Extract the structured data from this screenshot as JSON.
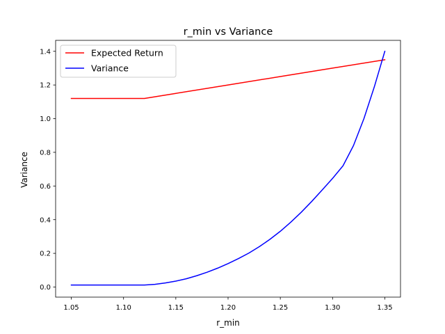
{
  "chart_data": {
    "type": "line",
    "title": "r_min vs Variance",
    "xlabel": "r_min",
    "ylabel": "Variance",
    "xlim": [
      1.035,
      1.365
    ],
    "ylim": [
      -0.06,
      1.465
    ],
    "xticks": [
      1.05,
      1.1,
      1.15,
      1.2,
      1.25,
      1.3,
      1.35
    ],
    "xtick_labels": [
      "1.05",
      "1.10",
      "1.15",
      "1.20",
      "1.25",
      "1.30",
      "1.35"
    ],
    "yticks": [
      0.0,
      0.2,
      0.4,
      0.6,
      0.8,
      1.0,
      1.2,
      1.4
    ],
    "ytick_labels": [
      "0.0",
      "0.2",
      "0.4",
      "0.6",
      "0.8",
      "1.0",
      "1.2",
      "1.4"
    ],
    "grid": false,
    "legend_position": "top-left",
    "series": [
      {
        "name": "Expected Return",
        "color": "#ff0000",
        "x": [
          1.05,
          1.06,
          1.07,
          1.08,
          1.09,
          1.1,
          1.11,
          1.12,
          1.15,
          1.2,
          1.25,
          1.3,
          1.35
        ],
        "y": [
          1.12,
          1.12,
          1.12,
          1.12,
          1.12,
          1.12,
          1.12,
          1.12,
          1.15,
          1.2,
          1.25,
          1.3,
          1.35
        ]
      },
      {
        "name": "Variance",
        "color": "#0000ff",
        "x": [
          1.05,
          1.08,
          1.1,
          1.12,
          1.13,
          1.14,
          1.15,
          1.16,
          1.17,
          1.18,
          1.19,
          1.2,
          1.21,
          1.22,
          1.23,
          1.24,
          1.25,
          1.26,
          1.27,
          1.28,
          1.29,
          1.3,
          1.31,
          1.32,
          1.33,
          1.34,
          1.35
        ],
        "y": [
          0.012,
          0.012,
          0.012,
          0.012,
          0.016,
          0.024,
          0.035,
          0.049,
          0.067,
          0.088,
          0.112,
          0.139,
          0.169,
          0.202,
          0.24,
          0.283,
          0.331,
          0.385,
          0.444,
          0.508,
          0.576,
          0.645,
          0.72,
          0.84,
          1.0,
          1.19,
          1.4
        ]
      }
    ]
  }
}
